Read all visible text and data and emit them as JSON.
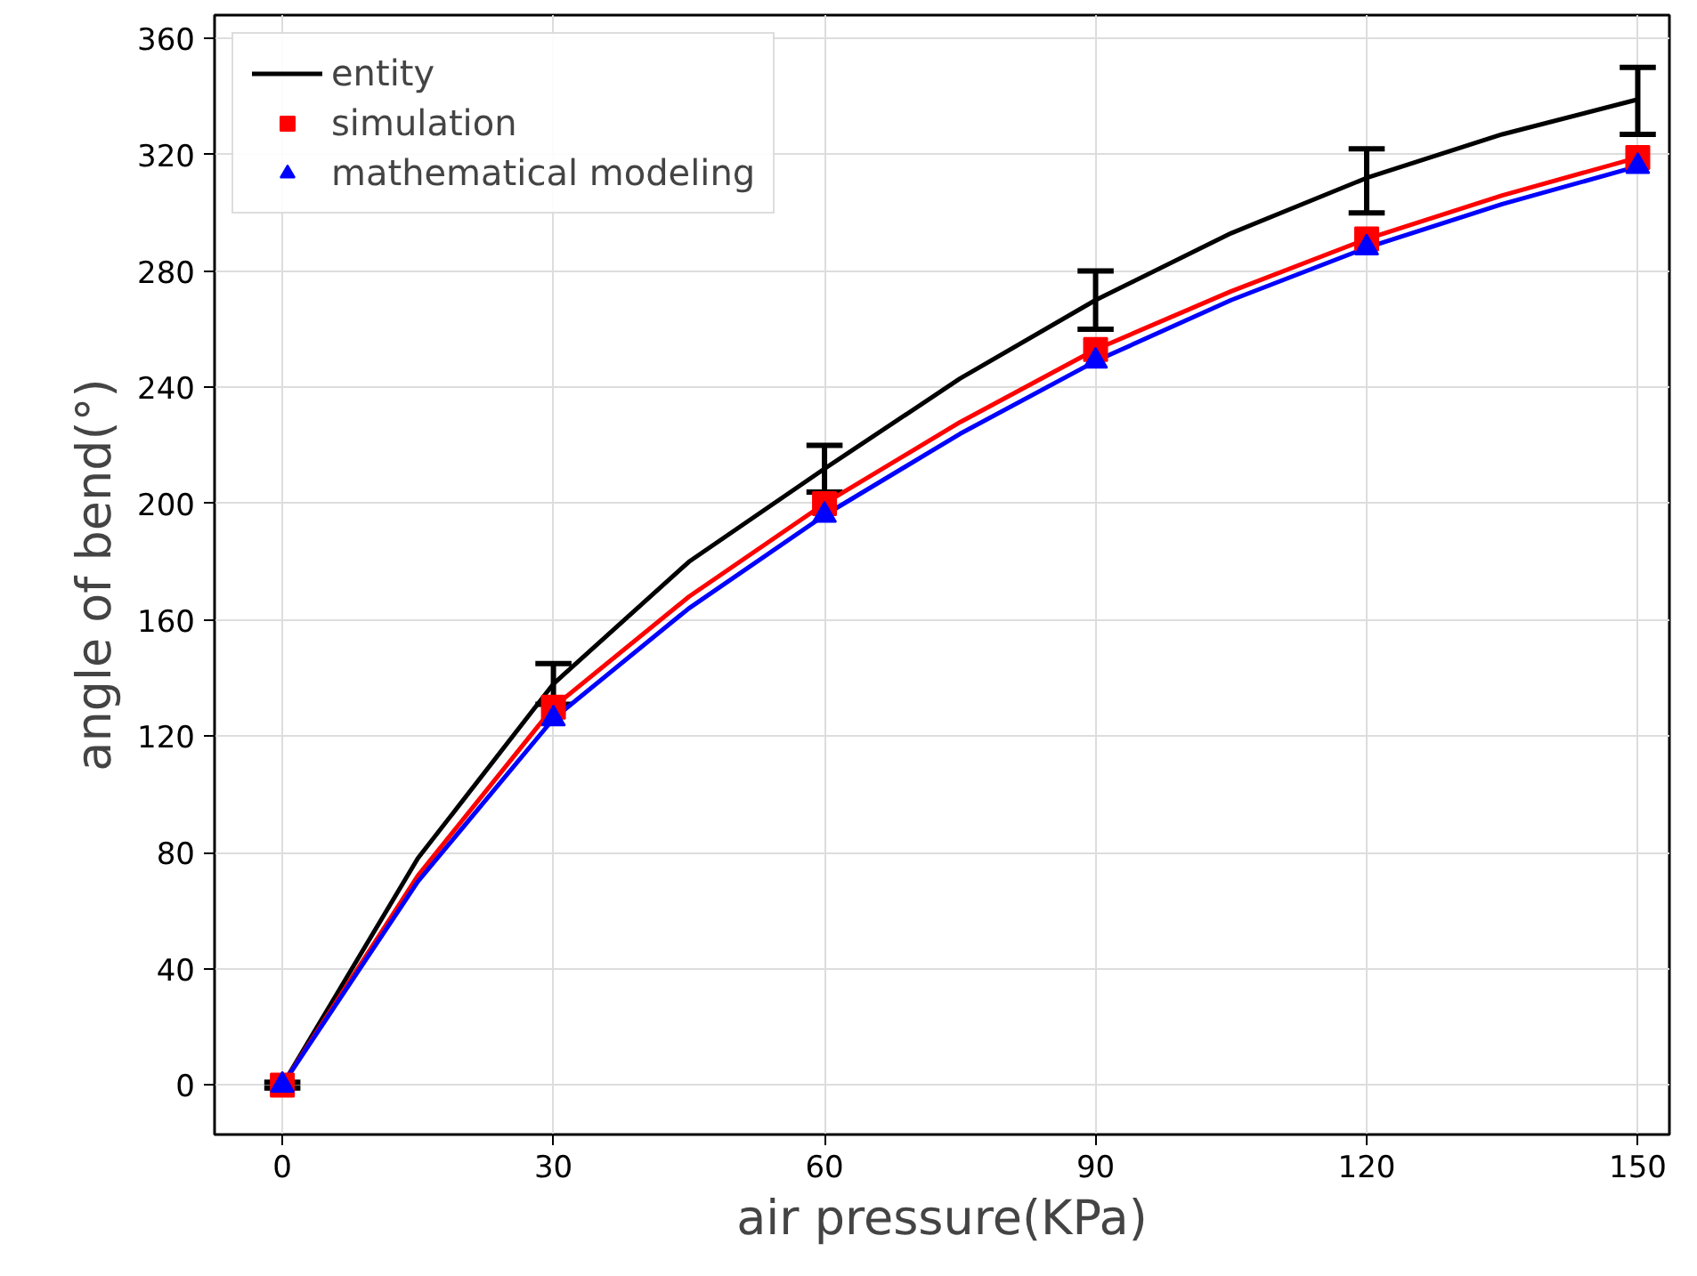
{
  "chart_data": {
    "type": "line",
    "xlabel": "air pressure(KPa)",
    "ylabel": "angle of bend(°)",
    "xlim": [
      -7.5,
      153.5
    ],
    "ylim": [
      -17,
      368
    ],
    "xticks": [
      0,
      30,
      60,
      90,
      120,
      150
    ],
    "yticks": [
      0,
      40,
      80,
      120,
      160,
      200,
      240,
      280,
      320,
      360
    ],
    "grid": true,
    "legend": "top left",
    "series": [
      {
        "name": "entity",
        "color": "#000000",
        "marker": "none",
        "x": [
          0,
          15,
          30,
          45,
          60,
          75,
          90,
          105,
          120,
          135,
          150
        ],
        "values": [
          0,
          78,
          138,
          180,
          212,
          243,
          270,
          293,
          312,
          327,
          339
        ],
        "errors": [
          [
            -1,
            1
          ],
          null,
          [
            131,
            145
          ],
          null,
          [
            204,
            220
          ],
          null,
          [
            260,
            280
          ],
          null,
          [
            300,
            322
          ],
          null,
          [
            327,
            350
          ]
        ]
      },
      {
        "color": "#ff0000",
        "marker": "none",
        "x": [
          0,
          15,
          30,
          45,
          60,
          75,
          90,
          105,
          120,
          135,
          150
        ],
        "values": [
          0,
          72,
          130,
          168,
          200,
          228,
          253,
          273,
          291,
          306,
          319
        ]
      },
      {
        "color": "#0000ff",
        "marker": "none",
        "x": [
          0,
          15,
          30,
          45,
          60,
          75,
          90,
          105,
          120,
          135,
          150
        ],
        "values": [
          0,
          70,
          126,
          164,
          196,
          224,
          249,
          270,
          288,
          303,
          316
        ]
      },
      {
        "name": "simulation",
        "type": "scatter",
        "color": "#ff0000",
        "marker": "square",
        "x": [
          0,
          30,
          60,
          90,
          120,
          150
        ],
        "values": [
          0,
          130,
          200,
          253,
          291,
          319
        ]
      },
      {
        "name": "mathematical modeling",
        "type": "scatter",
        "color": "#0000ff",
        "marker": "triangle",
        "x": [
          0,
          30,
          60,
          90,
          120,
          150
        ],
        "values": [
          0,
          126,
          196,
          249,
          288,
          316
        ]
      }
    ]
  }
}
